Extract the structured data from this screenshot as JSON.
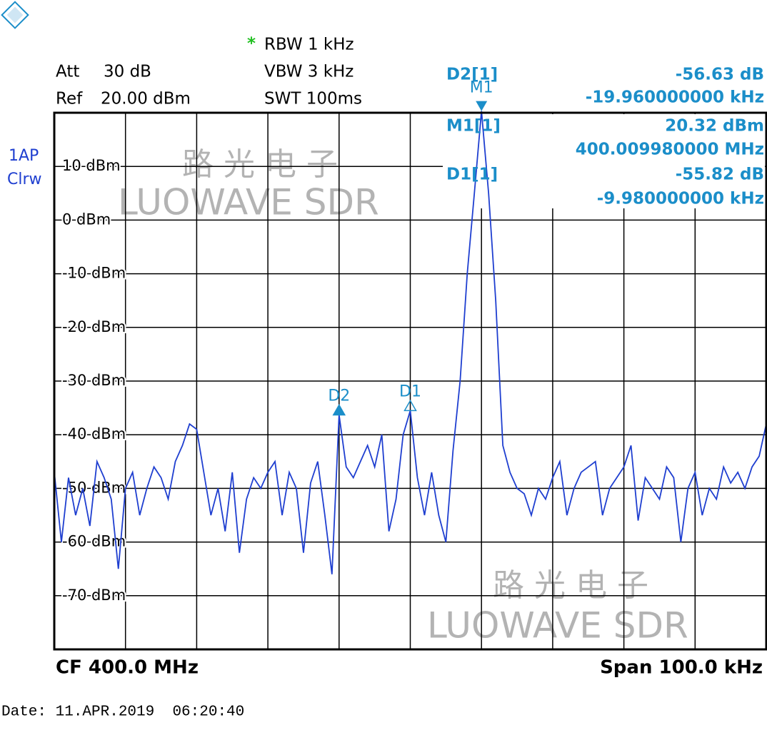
{
  "chart_data": {
    "type": "line",
    "settings": {
      "att_label": "Att",
      "att": "30 dB",
      "ref_label": "Ref",
      "ref": "20.00 dBm",
      "star": "*",
      "rbw": "RBW 1 kHz",
      "vbw": "VBW 3 kHz",
      "swt": "SWT 100ms",
      "trace_mode": "1AP",
      "trace_type": "Clrw"
    },
    "center": "CF 400.0 MHz",
    "span": "Span 100.0 kHz",
    "date": "Date: 11.APR.2019  06:20:40",
    "watermark": [
      "路光电子",
      "LUOWAVE SDR"
    ],
    "readouts": [
      {
        "label": "D2[1]",
        "level": "-56.63 dB",
        "freq": "-19.960000000 kHz"
      },
      {
        "label": "M1[1]",
        "level": "20.32 dBm",
        "freq": "400.009980000 MHz"
      },
      {
        "label": "D1[1]",
        "level": "-55.82 dB",
        "freq": "-9.980000000 kHz"
      }
    ],
    "markers": [
      {
        "name": "M1",
        "x": 10,
        "y": 20.32
      },
      {
        "name": "D2",
        "x": -10,
        "y": -36.31
      },
      {
        "name": "D1",
        "x": 0,
        "y": -35.5
      }
    ],
    "xlim": [
      -50,
      50
    ],
    "xticks": [
      -50,
      -40,
      -30,
      -20,
      -10,
      0,
      10,
      20,
      30,
      40,
      50
    ],
    "ylim": [
      -80,
      20
    ],
    "yticks": [
      {
        "value": 10,
        "label": "10 dBm"
      },
      {
        "value": 0,
        "label": "0 dBm"
      },
      {
        "value": -10,
        "label": "-10 dBm"
      },
      {
        "value": -20,
        "label": "-20 dBm"
      },
      {
        "value": -30,
        "label": "-30 dBm"
      },
      {
        "value": -40,
        "label": "-40 dBm"
      },
      {
        "value": -50,
        "label": "-50 dBm"
      },
      {
        "value": -60,
        "label": "-60 dBm"
      },
      {
        "value": -70,
        "label": "-70 dBm"
      }
    ],
    "grid": true,
    "x": [
      -50,
      -49,
      -48,
      -47,
      -46,
      -45,
      -44,
      -43,
      -42,
      -41,
      -40,
      -39,
      -38,
      -37,
      -36,
      -35,
      -34,
      -33,
      -32,
      -31,
      -30,
      -29,
      -28,
      -27,
      -26,
      -25,
      -24,
      -23,
      -22,
      -21,
      -20,
      -19,
      -18,
      -17,
      -16,
      -15,
      -14,
      -13,
      -12,
      -11,
      -10,
      -9,
      -8,
      -7,
      -6,
      -5,
      -4,
      -3,
      -2,
      -1,
      0,
      1,
      2,
      3,
      4,
      5,
      6,
      7,
      8,
      9,
      10,
      11,
      12,
      13,
      14,
      15,
      16,
      17,
      18,
      19,
      20,
      21,
      22,
      23,
      24,
      25,
      26,
      27,
      28,
      29,
      30,
      31,
      32,
      33,
      34,
      35,
      36,
      37,
      38,
      39,
      40,
      41,
      42,
      43,
      44,
      45,
      46,
      47,
      48,
      49,
      50
    ],
    "series": [
      {
        "color": "#1f3fd0",
        "values": [
          -47,
          -60,
          -48,
          -55,
          -50,
          -57,
          -45,
          -48,
          -52,
          -65,
          -50,
          -47,
          -55,
          -50,
          -46,
          -48,
          -52,
          -45,
          -42,
          -38,
          -39,
          -47,
          -55,
          -50,
          -58,
          -47,
          -62,
          -52,
          -48,
          -50,
          -47,
          -45,
          -55,
          -47,
          -50,
          -62,
          -49,
          -45,
          -55,
          -66,
          -36.3,
          -46,
          -48,
          -45,
          -42,
          -46,
          -40,
          -58,
          -52,
          -40,
          -35.5,
          -48,
          -55,
          -47,
          -55,
          -60,
          -43,
          -30,
          -10,
          5,
          20.3,
          5,
          -15,
          -42,
          -47,
          -50,
          -51,
          -55,
          -50,
          -52,
          -48,
          -45,
          -55,
          -50,
          -47,
          -46,
          -45,
          -55,
          -50,
          -48,
          -46,
          -42,
          -56,
          -48,
          -50,
          -52,
          -46,
          -48,
          -60,
          -50,
          -47,
          -55,
          -50,
          -52,
          -46,
          -49,
          -47,
          -50,
          -46,
          -44,
          -38
        ]
      }
    ],
    "marker_color": "#1b8ec9"
  }
}
